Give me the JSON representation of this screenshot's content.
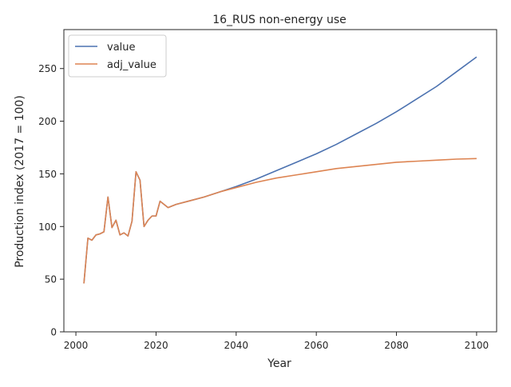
{
  "chart_data": {
    "type": "line",
    "title": "16_RUS non-energy use",
    "xlabel": "Year",
    "ylabel": "Production index (2017 = 100)",
    "xlim": [
      1997,
      2105
    ],
    "ylim": [
      0,
      287
    ],
    "xticks": [
      2000,
      2020,
      2040,
      2060,
      2080,
      2100
    ],
    "yticks": [
      0,
      50,
      100,
      150,
      200,
      250
    ],
    "grid": false,
    "legend_position": "upper-left",
    "series": [
      {
        "name": "value",
        "color": "#4c72b0",
        "points": [
          [
            2002,
            46
          ],
          [
            2003,
            89
          ],
          [
            2004,
            87
          ],
          [
            2005,
            92
          ],
          [
            2006,
            93
          ],
          [
            2007,
            95
          ],
          [
            2008,
            128
          ],
          [
            2009,
            99
          ],
          [
            2010,
            106
          ],
          [
            2011,
            92
          ],
          [
            2012,
            94
          ],
          [
            2013,
            91
          ],
          [
            2014,
            105
          ],
          [
            2015,
            152
          ],
          [
            2016,
            144
          ],
          [
            2017,
            100
          ],
          [
            2018,
            106
          ],
          [
            2019,
            110
          ],
          [
            2020,
            110
          ],
          [
            2021,
            124
          ],
          [
            2022,
            121
          ],
          [
            2023,
            118
          ],
          [
            2025,
            121
          ],
          [
            2028,
            124
          ],
          [
            2032,
            128
          ],
          [
            2036,
            133
          ],
          [
            2040,
            138
          ],
          [
            2045,
            145
          ],
          [
            2050,
            153
          ],
          [
            2055,
            161
          ],
          [
            2060,
            169
          ],
          [
            2065,
            178
          ],
          [
            2070,
            188
          ],
          [
            2075,
            198
          ],
          [
            2080,
            209
          ],
          [
            2085,
            221
          ],
          [
            2090,
            233
          ],
          [
            2095,
            247
          ],
          [
            2100,
            261
          ]
        ]
      },
      {
        "name": "adj_value",
        "color": "#dd8452",
        "points": [
          [
            2002,
            46
          ],
          [
            2003,
            89
          ],
          [
            2004,
            87
          ],
          [
            2005,
            92
          ],
          [
            2006,
            93
          ],
          [
            2007,
            95
          ],
          [
            2008,
            128
          ],
          [
            2009,
            99
          ],
          [
            2010,
            106
          ],
          [
            2011,
            92
          ],
          [
            2012,
            94
          ],
          [
            2013,
            91
          ],
          [
            2014,
            105
          ],
          [
            2015,
            152
          ],
          [
            2016,
            144
          ],
          [
            2017,
            100
          ],
          [
            2018,
            106
          ],
          [
            2019,
            110
          ],
          [
            2020,
            110
          ],
          [
            2021,
            124
          ],
          [
            2022,
            121
          ],
          [
            2023,
            118
          ],
          [
            2025,
            121
          ],
          [
            2028,
            124
          ],
          [
            2032,
            128
          ],
          [
            2036,
            133
          ],
          [
            2040,
            137
          ],
          [
            2045,
            142
          ],
          [
            2050,
            146
          ],
          [
            2055,
            149
          ],
          [
            2060,
            152
          ],
          [
            2065,
            155
          ],
          [
            2070,
            157
          ],
          [
            2075,
            159
          ],
          [
            2080,
            161
          ],
          [
            2085,
            162
          ],
          [
            2090,
            163
          ],
          [
            2095,
            164
          ],
          [
            2100,
            164.5
          ]
        ]
      }
    ]
  }
}
